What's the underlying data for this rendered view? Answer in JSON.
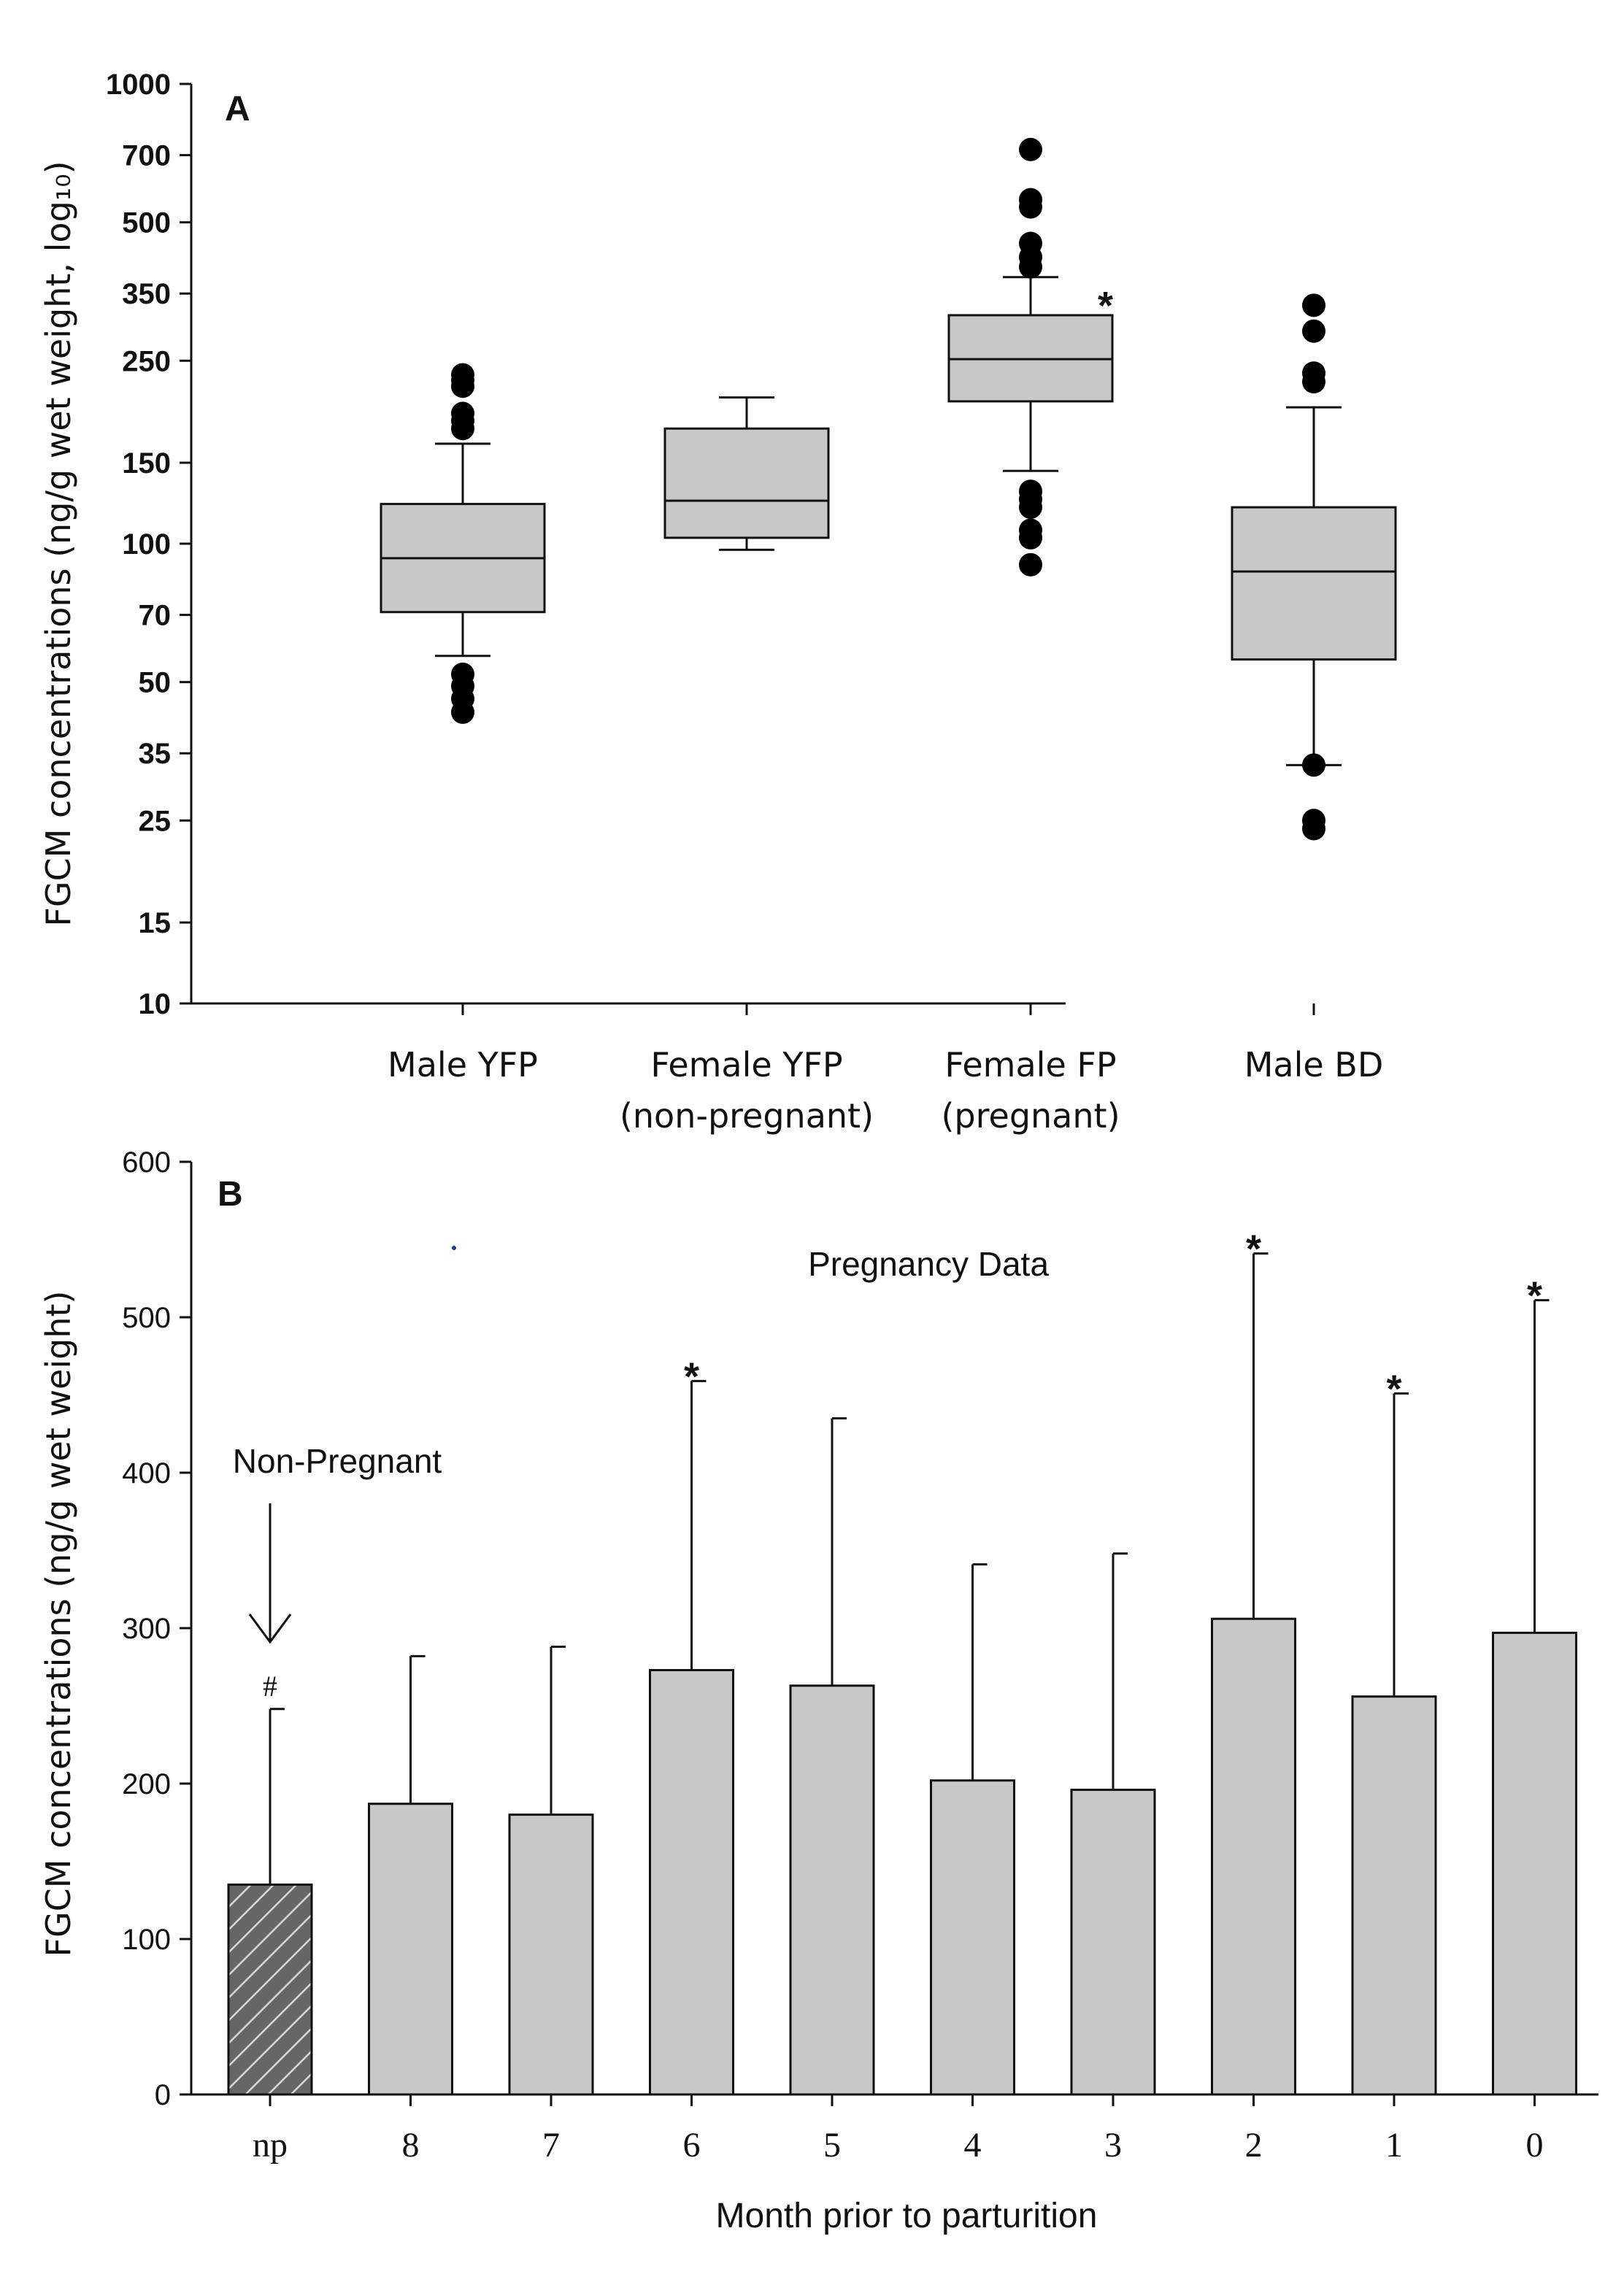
{
  "chart_data": [
    {
      "panel": "A",
      "type": "box",
      "ylabel": "FGCM concentrations (ng/g wet weight, log₁₀)",
      "yscale": "log",
      "ylim": [
        10,
        1000
      ],
      "yticks": [
        10,
        15,
        25,
        35,
        50,
        70,
        100,
        150,
        250,
        350,
        500,
        700,
        1000
      ],
      "grid": false,
      "categories": [
        {
          "label": "Male YFP",
          "sublabel": ""
        },
        {
          "label": "Female YFP",
          "sublabel": "(non-pregnant)"
        },
        {
          "label": "Female FP",
          "sublabel": "(pregnant)"
        },
        {
          "label": "Male BD",
          "sublabel": ""
        }
      ],
      "boxes": [
        {
          "whisker_low": 57,
          "q1": 71,
          "median": 93,
          "q3": 122,
          "whisker_high": 165,
          "outliers": [
            233,
            227,
            220,
            192,
            185,
            178,
            52,
            49,
            46,
            43
          ],
          "marker": ""
        },
        {
          "whisker_low": 97,
          "q1": 103,
          "median": 124,
          "q3": 178,
          "whisker_high": 208,
          "outliers": [],
          "marker": ""
        },
        {
          "whisker_low": 144,
          "q1": 204,
          "median": 252,
          "q3": 314,
          "whisker_high": 380,
          "outliers": [
            720,
            560,
            540,
            450,
            420,
            400,
            130,
            125,
            120,
            107,
            103,
            90
          ],
          "marker": "*"
        },
        {
          "whisker_low": 33,
          "q1": 56,
          "median": 87,
          "q3": 120,
          "whisker_high": 198,
          "outliers": [
            330,
            290,
            235,
            225,
            33,
            25,
            24
          ],
          "marker": ""
        }
      ]
    },
    {
      "panel": "B",
      "type": "bar",
      "title": "Pregnancy Data",
      "xlabel": "Month prior to parturition",
      "ylabel": "FGCM concentrations (ng/g wet weight)",
      "ylim": [
        0,
        600
      ],
      "yticks": [
        0,
        100,
        200,
        300,
        400,
        500,
        600
      ],
      "grid": false,
      "categories": [
        "np",
        "8",
        "7",
        "6",
        "5",
        "4",
        "3",
        "2",
        "1",
        "0"
      ],
      "values": [
        135,
        187,
        180,
        273,
        263,
        202,
        196,
        306,
        256,
        297
      ],
      "errors_upper": [
        248,
        282,
        288,
        459,
        435,
        341,
        348,
        541,
        451,
        511
      ],
      "markers": [
        "#",
        "",
        "",
        "*",
        "",
        "",
        "",
        "*",
        "*",
        "*"
      ],
      "annotation": "Non-Pregnant",
      "fill_colors": [
        "#666666",
        "#c8c8c8",
        "#c8c8c8",
        "#c8c8c8",
        "#c8c8c8",
        "#c8c8c8",
        "#c8c8c8",
        "#c8c8c8",
        "#c8c8c8",
        "#c8c8c8"
      ]
    }
  ]
}
